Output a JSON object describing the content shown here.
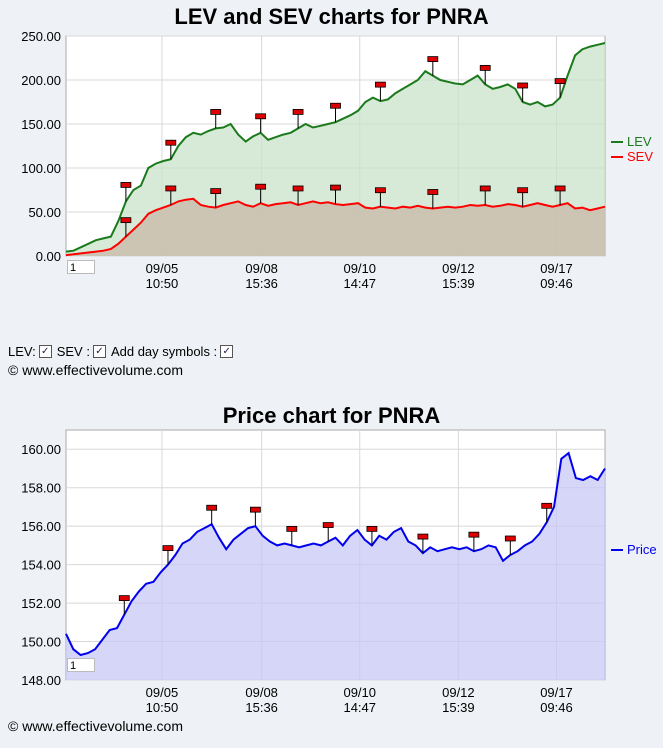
{
  "chart1": {
    "title": "LEV and SEV charts for PNRA",
    "range_value": "1",
    "legend": [
      {
        "label": "LEV",
        "color": "#1b7a1b"
      },
      {
        "label": "SEV",
        "color": "#ff0000"
      }
    ]
  },
  "chart2": {
    "title": "Price chart for PNRA",
    "range_value": "1",
    "legend": [
      {
        "label": "Price",
        "color": "#0000ee"
      }
    ]
  },
  "controls": {
    "lev_label": "LEV:",
    "sev_label": "SEV :",
    "day_label": "Add day symbols :",
    "check": "✓"
  },
  "copyright": "© www.effectivevolume.com",
  "chart_data": [
    {
      "type": "area",
      "title": "LEV and SEV charts for PNRA",
      "ylim": [
        0,
        250
      ],
      "yticks": [
        "0.00",
        "50.00",
        "100.00",
        "150.00",
        "200.00",
        "250.00"
      ],
      "xticks": [
        {
          "date": "09/05",
          "time": "10:50"
        },
        {
          "date": "09/08",
          "time": "15:36"
        },
        {
          "date": "09/10",
          "time": "14:47"
        },
        {
          "date": "09/12",
          "time": "15:39"
        },
        {
          "date": "09/17",
          "time": "09:46"
        }
      ],
      "grid": true,
      "legend_position": "right",
      "series": [
        {
          "name": "LEV",
          "color": "#1b7a1b",
          "fill": "#c9e3c9",
          "values": [
            5,
            6,
            10,
            14,
            18,
            20,
            22,
            40,
            62,
            75,
            80,
            100,
            105,
            108,
            110,
            125,
            135,
            140,
            138,
            142,
            145,
            146,
            150,
            138,
            130,
            136,
            140,
            132,
            135,
            138,
            140,
            145,
            150,
            146,
            148,
            150,
            152,
            156,
            160,
            165,
            175,
            180,
            176,
            178,
            185,
            190,
            195,
            200,
            210,
            205,
            200,
            198,
            196,
            195,
            200,
            205,
            195,
            190,
            192,
            195,
            190,
            175,
            172,
            175,
            170,
            172,
            180,
            205,
            228,
            235,
            238,
            240,
            242
          ]
        },
        {
          "name": "SEV",
          "color": "#ff0000",
          "fill": "#c9b8a8",
          "values": [
            1,
            2,
            3,
            4,
            5,
            6,
            8,
            14,
            22,
            30,
            38,
            48,
            52,
            55,
            58,
            62,
            64,
            65,
            58,
            56,
            55,
            58,
            60,
            62,
            58,
            56,
            60,
            57,
            59,
            60,
            61,
            58,
            60,
            62,
            60,
            61,
            59,
            58,
            59,
            60,
            55,
            54,
            56,
            55,
            54,
            56,
            55,
            57,
            55,
            54,
            55,
            56,
            55,
            56,
            58,
            57,
            58,
            56,
            57,
            59,
            58,
            56,
            58,
            60,
            58,
            56,
            58,
            60,
            54,
            55,
            52,
            54,
            56
          ]
        }
      ]
    },
    {
      "type": "area",
      "title": "Price chart for PNRA",
      "ylim": [
        148,
        161
      ],
      "yticks": [
        "148.00",
        "150.00",
        "152.00",
        "154.00",
        "156.00",
        "158.00",
        "160.00"
      ],
      "xticks": [
        {
          "date": "09/05",
          "time": "10:50"
        },
        {
          "date": "09/08",
          "time": "15:36"
        },
        {
          "date": "09/10",
          "time": "14:47"
        },
        {
          "date": "09/12",
          "time": "15:39"
        },
        {
          "date": "09/17",
          "time": "09:46"
        }
      ],
      "grid": true,
      "legend_position": "right",
      "series": [
        {
          "name": "Price",
          "color": "#0000ee",
          "fill": "#c8c8f6",
          "values": [
            150.4,
            149.6,
            149.3,
            149.4,
            149.6,
            150.1,
            150.6,
            150.7,
            151.4,
            152.1,
            152.6,
            153.0,
            153.1,
            153.6,
            154.0,
            154.5,
            155.1,
            155.3,
            155.7,
            155.9,
            156.1,
            155.4,
            154.8,
            155.3,
            155.6,
            155.9,
            156.0,
            155.5,
            155.2,
            155.0,
            155.1,
            155.0,
            154.9,
            155.0,
            155.1,
            155.0,
            155.2,
            155.4,
            155.0,
            155.5,
            155.8,
            155.3,
            155.0,
            155.5,
            155.3,
            155.7,
            155.9,
            155.2,
            155.0,
            154.6,
            154.9,
            154.7,
            154.8,
            154.9,
            154.8,
            154.9,
            154.7,
            154.8,
            155.0,
            154.9,
            154.2,
            154.5,
            154.7,
            155.0,
            155.2,
            155.6,
            156.2,
            157.0,
            159.5,
            159.8,
            158.5,
            158.4,
            158.6,
            158.4,
            159.0
          ]
        }
      ]
    }
  ]
}
